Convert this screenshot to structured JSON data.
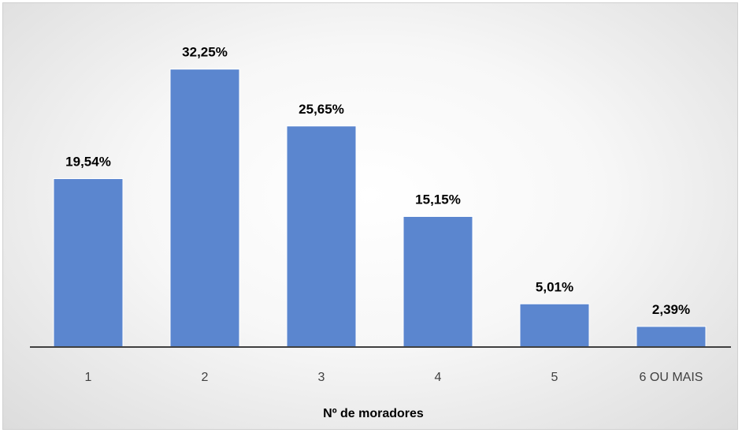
{
  "chart_data": {
    "type": "bar",
    "categories": [
      "1",
      "2",
      "3",
      "4",
      "5",
      "6 OU MAIS"
    ],
    "values": [
      19.54,
      32.25,
      25.65,
      15.15,
      5.01,
      2.39
    ],
    "data_labels": [
      "19,54%",
      "32,25%",
      "25,65%",
      "15,15%",
      "5,01%",
      "2,39%"
    ],
    "title": "",
    "xlabel": "Nº de moradores",
    "ylabel": "",
    "ylim": [
      0,
      33.5
    ],
    "grid": false,
    "legend": "none",
    "colors": {
      "bar": "#5b86cf",
      "bar_stroke": "#ffffff",
      "axis": "#404040"
    }
  }
}
